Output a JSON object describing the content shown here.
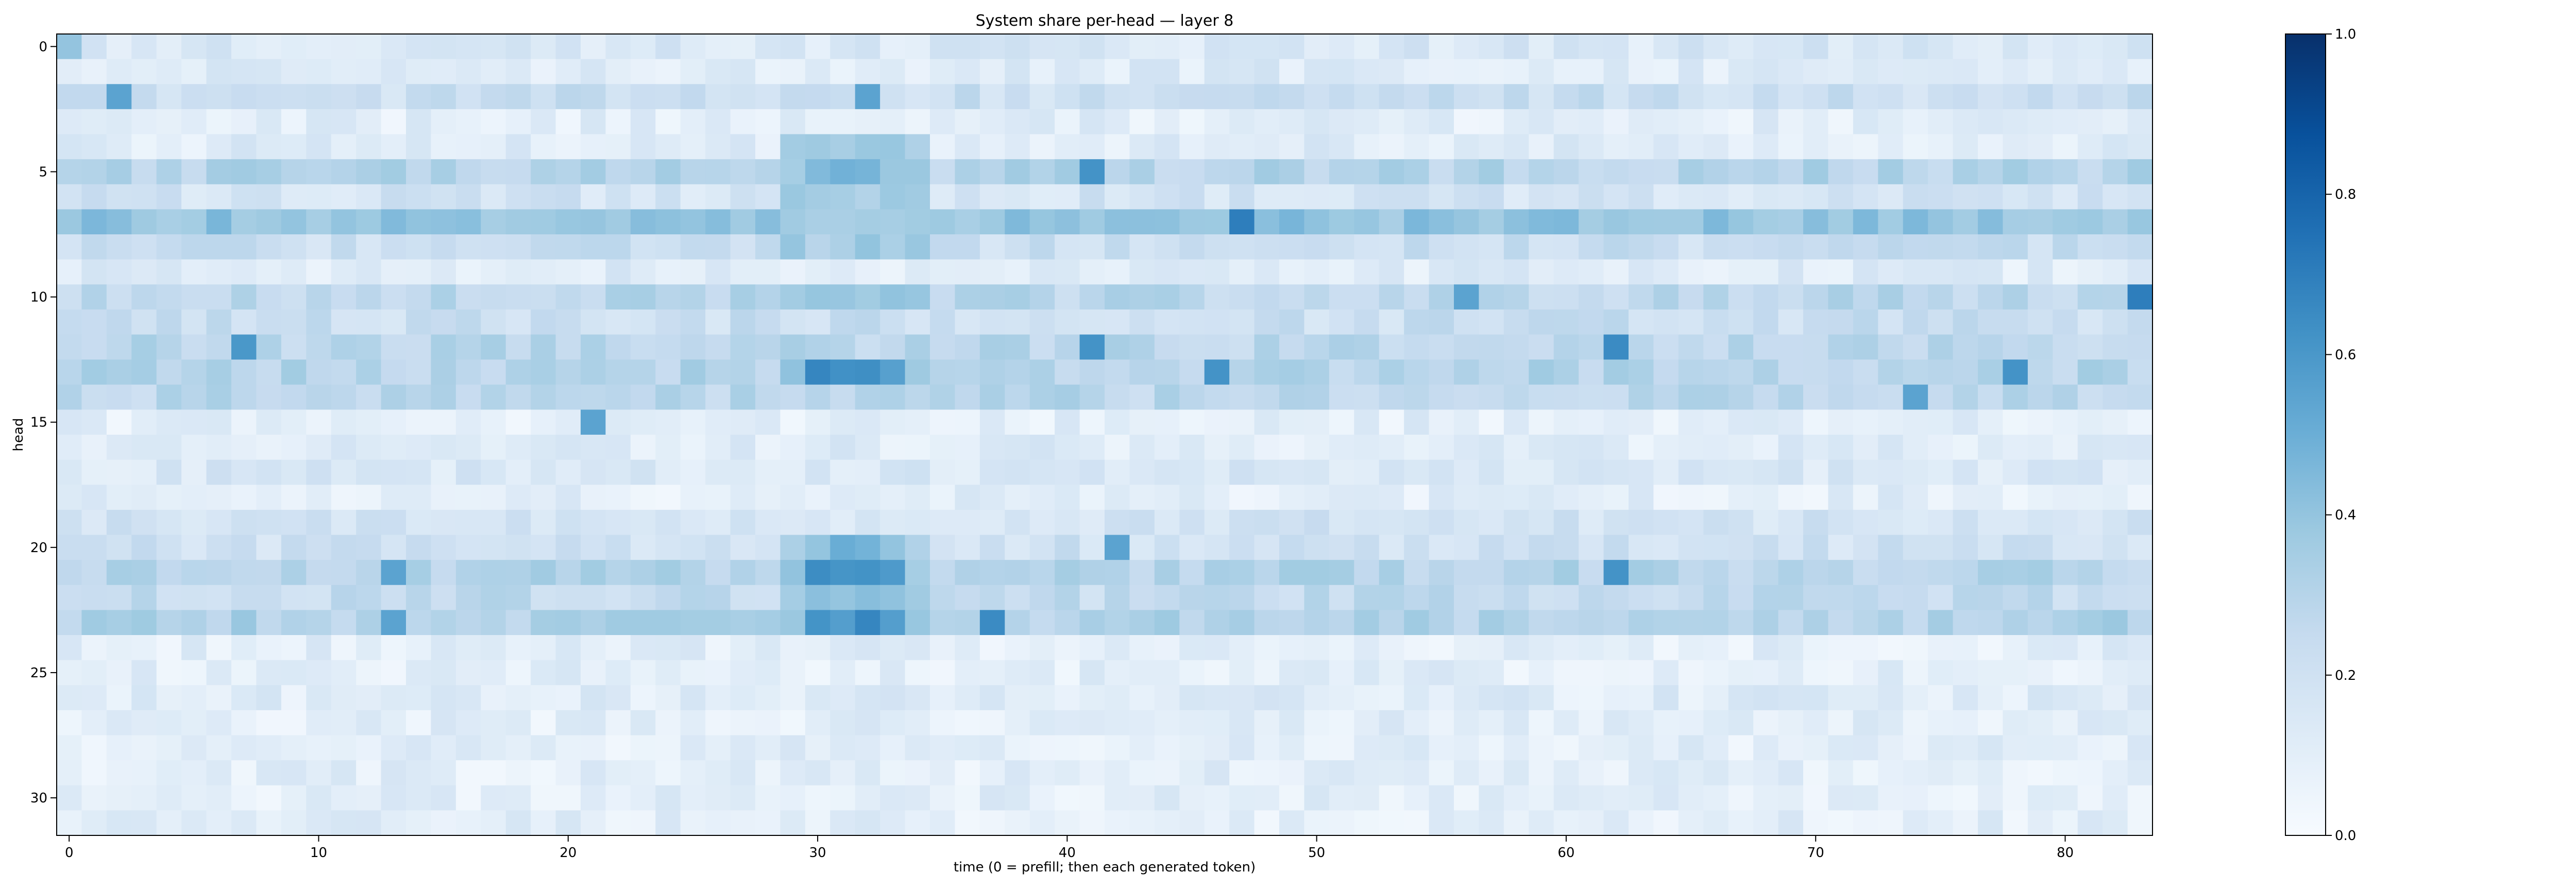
{
  "chart_data": {
    "type": "heatmap",
    "title": "System share per-head — layer 8",
    "xlabel": "time (0 = prefill; then each generated token)",
    "ylabel": "head",
    "n_cols": 84,
    "n_rows": 32,
    "x_ticks": [
      0,
      10,
      20,
      30,
      40,
      50,
      60,
      70,
      80
    ],
    "y_ticks": [
      0,
      5,
      10,
      15,
      20,
      25,
      30
    ],
    "colormap": "Blues",
    "vmin": 0.0,
    "vmax": 1.0,
    "colorbar_ticks": [
      "0.0",
      "0.2",
      "0.4",
      "0.6",
      "0.8",
      "1.0"
    ],
    "row_base": [
      0.15,
      0.13,
      0.22,
      0.1,
      0.12,
      0.3,
      0.18,
      0.4,
      0.22,
      0.12,
      0.28,
      0.22,
      0.28,
      0.3,
      0.28,
      0.1,
      0.12,
      0.15,
      0.1,
      0.18,
      0.2,
      0.3,
      0.25,
      0.32,
      0.1,
      0.1,
      0.12,
      0.1,
      0.1,
      0.1,
      0.1,
      0.1
    ],
    "col_boost": [
      {
        "from": 29,
        "to": 34,
        "rows": [
          4,
          5,
          6,
          8,
          10,
          13,
          20,
          21,
          22,
          23
        ],
        "value": 0.35
      },
      {
        "from": 30,
        "to": 33,
        "rows": [
          13,
          21,
          23
        ],
        "value": 0.62
      },
      {
        "from": 30,
        "to": 32,
        "rows": [
          5,
          20,
          22
        ],
        "value": 0.45
      }
    ],
    "highlights": [
      {
        "row": 0,
        "col": 0,
        "value": 0.4
      },
      {
        "row": 2,
        "col": 2,
        "value": 0.55
      },
      {
        "row": 2,
        "col": 32,
        "value": 0.55
      },
      {
        "row": 7,
        "col": 47,
        "value": 0.7
      },
      {
        "row": 10,
        "col": 83,
        "value": 0.7
      },
      {
        "row": 12,
        "col": 7,
        "value": 0.6
      },
      {
        "row": 12,
        "col": 41,
        "value": 0.62
      },
      {
        "row": 12,
        "col": 62,
        "value": 0.65
      },
      {
        "row": 13,
        "col": 46,
        "value": 0.62
      },
      {
        "row": 13,
        "col": 78,
        "value": 0.62
      },
      {
        "row": 15,
        "col": 21,
        "value": 0.55
      },
      {
        "row": 21,
        "col": 13,
        "value": 0.55
      },
      {
        "row": 21,
        "col": 62,
        "value": 0.62
      },
      {
        "row": 23,
        "col": 13,
        "value": 0.55
      },
      {
        "row": 23,
        "col": 37,
        "value": 0.65
      },
      {
        "row": 20,
        "col": 42,
        "value": 0.55
      },
      {
        "row": 10,
        "col": 56,
        "value": 0.55
      },
      {
        "row": 14,
        "col": 74,
        "value": 0.55
      },
      {
        "row": 5,
        "col": 41,
        "value": 0.62
      }
    ]
  }
}
